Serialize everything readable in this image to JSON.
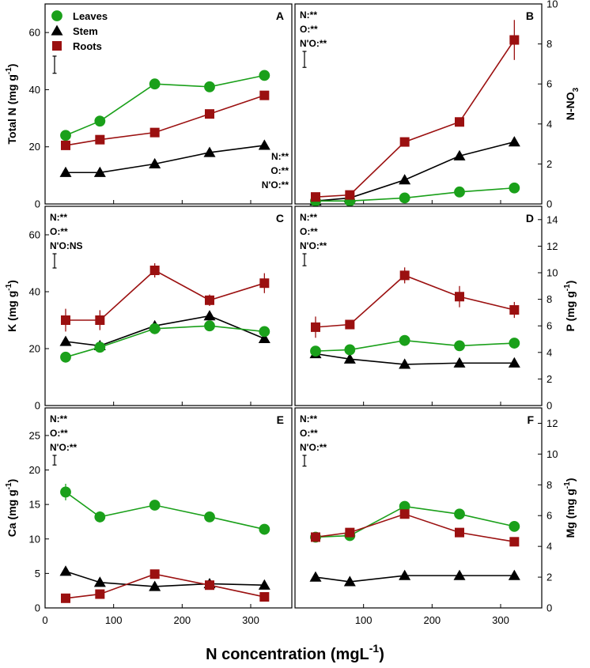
{
  "chart_data": {
    "type": "line",
    "layout": "3x2 panel grid",
    "xlabel": "N concentration (mgL",
    "xlabel_sup": "-1",
    "xlabel_close": ")",
    "xlim": [
      0,
      360
    ],
    "xticks": [
      0,
      100,
      200,
      300
    ],
    "x": [
      30,
      80,
      160,
      240,
      320
    ],
    "legend": {
      "placement": "top-left of panel A",
      "entries": [
        "Leaves",
        "Stem",
        "Roots"
      ],
      "colors": [
        "#1aa01a",
        "#000000",
        "#9b1010"
      ],
      "markers": [
        "circle",
        "triangle",
        "square"
      ],
      "line_colors": [
        "#1aa01a",
        "#000000",
        "#9b1010"
      ]
    },
    "panels": [
      {
        "id": "A",
        "side": "left",
        "ylabel": "Total N (mg g",
        "ylabel_sup": "-1",
        "ylabel_close": ")",
        "ylim": [
          0,
          70
        ],
        "yticks": [
          0,
          20,
          40,
          60
        ],
        "stats": [
          "N:**",
          "O:**",
          "N'O:**"
        ],
        "stats_position": "bottom-right",
        "lsd_bar": 6,
        "series": [
          {
            "name": "Leaves",
            "values": [
              24,
              29,
              42,
              41,
              45
            ],
            "errors": [
              1,
              1,
              1,
              1,
              1
            ]
          },
          {
            "name": "Stem",
            "values": [
              11,
              11,
              14,
              18,
              20.5
            ],
            "errors": [
              0.5,
              0.5,
              0.5,
              0.5,
              0.5
            ]
          },
          {
            "name": "Roots",
            "values": [
              20.5,
              22.5,
              25,
              31.5,
              38
            ],
            "errors": [
              1,
              1,
              1,
              1,
              1
            ]
          }
        ]
      },
      {
        "id": "B",
        "side": "right",
        "ylabel": "N-NO",
        "ylabel_sub": "3",
        "ylim": [
          0,
          10
        ],
        "yticks": [
          0,
          2,
          4,
          6,
          8,
          10
        ],
        "stats": [
          "N:**",
          "O:**",
          "N'O:**"
        ],
        "stats_position": "top-left",
        "lsd_bar": 0.8,
        "series": [
          {
            "name": "Leaves",
            "values": [
              0.15,
              0.15,
              0.3,
              0.6,
              0.8
            ],
            "errors": [
              0.05,
              0.05,
              0.05,
              0.05,
              0.05
            ]
          },
          {
            "name": "Stem",
            "values": [
              0.15,
              0.3,
              1.2,
              2.4,
              3.1
            ],
            "errors": [
              0.05,
              0.05,
              0.1,
              0.1,
              0.2
            ]
          },
          {
            "name": "Roots",
            "values": [
              0.35,
              0.45,
              3.1,
              4.1,
              8.2
            ],
            "errors": [
              0.1,
              0.1,
              0.2,
              0.2,
              1.0
            ]
          }
        ]
      },
      {
        "id": "C",
        "side": "left",
        "ylabel": "K (mg g",
        "ylabel_sup": "-1",
        "ylabel_close": ")",
        "ylim": [
          0,
          70
        ],
        "yticks": [
          0,
          20,
          40,
          60
        ],
        "stats": [
          "N:**",
          "O:**",
          "N'O:NS"
        ],
        "stats_position": "top-left",
        "lsd_bar": 5,
        "series": [
          {
            "name": "Leaves",
            "values": [
              17,
              20.5,
              27,
              28,
              26
            ],
            "errors": [
              1,
              1,
              1,
              1,
              1
            ]
          },
          {
            "name": "Stem",
            "values": [
              22.5,
              21,
              28,
              31.5,
              23.5
            ],
            "errors": [
              1,
              1,
              1,
              1,
              1
            ]
          },
          {
            "name": "Roots",
            "values": [
              30,
              30,
              47.5,
              37,
              43
            ],
            "errors": [
              4,
              3.5,
              2.5,
              2,
              3.5
            ]
          }
        ]
      },
      {
        "id": "D",
        "side": "right",
        "ylabel": "P (mg g",
        "ylabel_sup": "-1",
        "ylabel_close": ")",
        "ylim": [
          0,
          15
        ],
        "yticks": [
          0,
          2,
          4,
          6,
          8,
          10,
          12,
          14
        ],
        "stats": [
          "N:**",
          "O:**",
          "N'O:**"
        ],
        "stats_position": "top-left",
        "lsd_bar": 0.9,
        "series": [
          {
            "name": "Leaves",
            "values": [
              4.1,
              4.2,
              4.9,
              4.5,
              4.7
            ],
            "errors": [
              0.2,
              0.2,
              0.2,
              0.2,
              0.2
            ]
          },
          {
            "name": "Stem",
            "values": [
              3.9,
              3.5,
              3.1,
              3.2,
              3.2
            ],
            "errors": [
              0.1,
              0.1,
              0.1,
              0.1,
              0.1
            ]
          },
          {
            "name": "Roots",
            "values": [
              5.9,
              6.1,
              9.8,
              8.2,
              7.2
            ],
            "errors": [
              0.8,
              0.3,
              0.6,
              0.8,
              0.6
            ]
          }
        ]
      },
      {
        "id": "E",
        "side": "left",
        "ylabel": "Ca (mg g",
        "ylabel_sup": "-1",
        "ylabel_close": ")",
        "ylim": [
          0,
          29
        ],
        "yticks": [
          0,
          5,
          10,
          15,
          20,
          25
        ],
        "stats": [
          "N:**",
          "O:**",
          "N'O:**"
        ],
        "stats_position": "top-left",
        "lsd_bar": 1.4,
        "series": [
          {
            "name": "Leaves",
            "values": [
              16.8,
              13.2,
              14.9,
              13.2,
              11.4
            ],
            "errors": [
              1.2,
              0.8,
              0.4,
              0.4,
              0.4
            ]
          },
          {
            "name": "Stem",
            "values": [
              5.3,
              3.7,
              3.1,
              3.5,
              3.3
            ],
            "errors": [
              0.3,
              0.3,
              0.3,
              0.3,
              0.3
            ]
          },
          {
            "name": "Roots",
            "values": [
              1.4,
              2,
              4.9,
              3.3,
              1.6
            ],
            "errors": [
              0.2,
              0.2,
              0.3,
              0.3,
              0.2
            ]
          }
        ]
      },
      {
        "id": "F",
        "side": "right",
        "ylabel": "Mg (mg g",
        "ylabel_sup": "-1",
        "ylabel_close": ")",
        "ylim": [
          0,
          13
        ],
        "yticks": [
          0,
          2,
          4,
          6,
          8,
          10,
          12
        ],
        "stats": [
          "N:**",
          "O:**",
          "N'O:**"
        ],
        "stats_position": "top-left",
        "lsd_bar": 0.7,
        "series": [
          {
            "name": "Leaves",
            "values": [
              4.6,
              4.7,
              6.6,
              6.1,
              5.3
            ],
            "errors": [
              0.2,
              0.2,
              0.2,
              0.2,
              0.2
            ]
          },
          {
            "name": "Stem",
            "values": [
              2,
              1.7,
              2.1,
              2.1,
              2.1
            ],
            "errors": [
              0.1,
              0.1,
              0.1,
              0.1,
              0.1
            ]
          },
          {
            "name": "Roots",
            "values": [
              4.6,
              4.9,
              6.1,
              4.9,
              4.3
            ],
            "errors": [
              0.2,
              0.2,
              0.2,
              0.2,
              0.2
            ]
          }
        ]
      }
    ]
  }
}
